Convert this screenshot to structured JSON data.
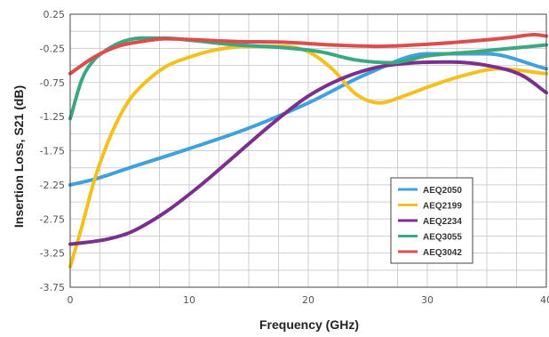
{
  "chart_data": {
    "type": "line",
    "title": "",
    "xlabel": "Frequency (GHz)",
    "ylabel": "Insertion Loss, S21 (dB)",
    "xlim": [
      0,
      40
    ],
    "ylim": [
      -3.75,
      0.25
    ],
    "x_ticks": [
      0,
      10,
      20,
      30,
      40
    ],
    "x_tick_labels": [
      "0",
      "10",
      "20",
      "30",
      "40"
    ],
    "y_ticks": [
      0.25,
      -0.25,
      -0.75,
      -1.25,
      -1.75,
      -2.25,
      -2.75,
      -3.25,
      -3.75
    ],
    "y_tick_labels": [
      "0.25",
      "-0.25",
      "-0.75",
      "-1.25",
      "-1.75",
      "-2.25",
      "-2.75",
      "-3.25",
      "-3.75"
    ],
    "grid": true,
    "legend_position": "bottom-right",
    "series": [
      {
        "name": "AEQ2050",
        "color": "#41a1db",
        "x": [
          0,
          2,
          5,
          10,
          15,
          20,
          25,
          30,
          35,
          40
        ],
        "values": [
          -2.25,
          -2.17,
          -2.0,
          -1.72,
          -1.42,
          -1.05,
          -0.62,
          -0.33,
          -0.33,
          -0.55
        ]
      },
      {
        "name": "AEQ2199",
        "color": "#f4c01e",
        "x": [
          0,
          1,
          2,
          3,
          4,
          5,
          6,
          8,
          10,
          12,
          15,
          18,
          20,
          22,
          24,
          26,
          28,
          30,
          33,
          36,
          40
        ],
        "values": [
          -3.45,
          -2.85,
          -2.2,
          -1.7,
          -1.3,
          -1.0,
          -0.8,
          -0.52,
          -0.38,
          -0.28,
          -0.22,
          -0.22,
          -0.3,
          -0.55,
          -0.92,
          -1.05,
          -0.95,
          -0.82,
          -0.65,
          -0.55,
          -0.62
        ]
      },
      {
        "name": "AEQ2234",
        "color": "#7b2f8e",
        "x": [
          0,
          3,
          5,
          8,
          11,
          14,
          17,
          20,
          23,
          26,
          29,
          32,
          35,
          38,
          40
        ],
        "values": [
          -3.12,
          -3.05,
          -2.95,
          -2.65,
          -2.25,
          -1.8,
          -1.35,
          -0.95,
          -0.68,
          -0.52,
          -0.46,
          -0.45,
          -0.5,
          -0.65,
          -0.9
        ]
      },
      {
        "name": "AEQ3055",
        "color": "#3aa880",
        "x": [
          0,
          1,
          2,
          3,
          4,
          5,
          6,
          8,
          10,
          14,
          18,
          21,
          24,
          27,
          30,
          34,
          37,
          40
        ],
        "values": [
          -1.28,
          -0.7,
          -0.42,
          -0.28,
          -0.18,
          -0.12,
          -0.1,
          -0.1,
          -0.13,
          -0.2,
          -0.24,
          -0.3,
          -0.42,
          -0.46,
          -0.36,
          -0.3,
          -0.25,
          -0.2
        ]
      },
      {
        "name": "AEQ3042",
        "color": "#dc4d4d",
        "x": [
          0,
          2,
          4,
          6,
          8,
          10,
          14,
          18,
          22,
          26,
          30,
          34,
          37,
          39,
          40
        ],
        "values": [
          -0.62,
          -0.38,
          -0.22,
          -0.15,
          -0.11,
          -0.12,
          -0.15,
          -0.16,
          -0.2,
          -0.22,
          -0.19,
          -0.14,
          -0.09,
          -0.05,
          -0.07
        ]
      }
    ]
  }
}
